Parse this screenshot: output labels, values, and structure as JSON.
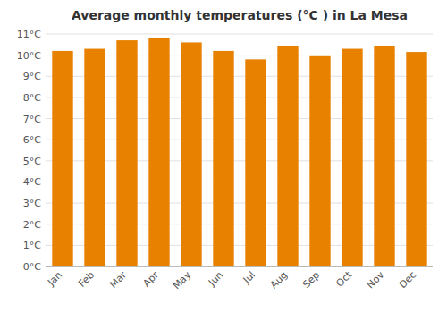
{
  "chart_data": {
    "type": "bar",
    "title": "Average monthly temperatures (°C ) in La Mesa",
    "categories": [
      "Jan",
      "Feb",
      "Mar",
      "Apr",
      "May",
      "Jun",
      "Jul",
      "Aug",
      "Sep",
      "Oct",
      "Nov",
      "Dec"
    ],
    "values": [
      10.2,
      10.3,
      10.7,
      10.8,
      10.6,
      10.2,
      9.8,
      10.45,
      9.95,
      10.3,
      10.45,
      10.15
    ],
    "color": "#E88000",
    "ylim": [
      0,
      11
    ],
    "yticks": [
      {
        "value": 0,
        "label": "0°C"
      },
      {
        "value": 1,
        "label": "1°C"
      },
      {
        "value": 2,
        "label": "2°C"
      },
      {
        "value": 3,
        "label": "3°C"
      },
      {
        "value": 4,
        "label": "4°C"
      },
      {
        "value": 5,
        "label": "5°C"
      },
      {
        "value": 6,
        "label": "6°C"
      },
      {
        "value": 7,
        "label": "7°C"
      },
      {
        "value": 8,
        "label": "8°C"
      },
      {
        "value": 9,
        "label": "9°C"
      },
      {
        "value": 10,
        "label": "10°C"
      },
      {
        "value": 11,
        "label": "11°C"
      }
    ],
    "grid": true
  }
}
